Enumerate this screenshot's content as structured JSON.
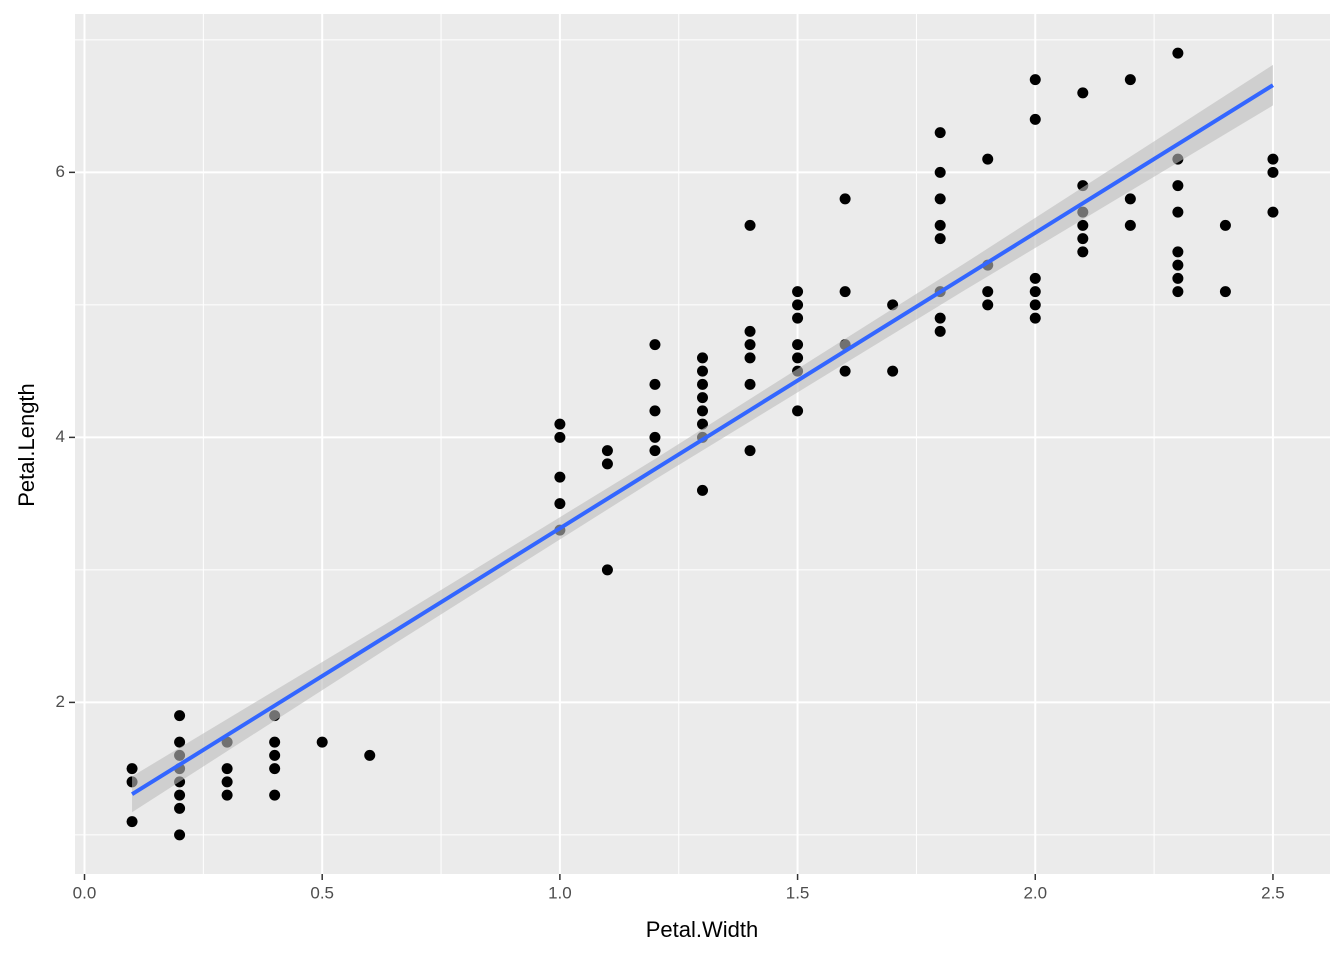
{
  "chart_data": {
    "type": "scatter",
    "x_label": "Petal.Width",
    "y_label": "Petal.Length",
    "xlim": [
      -0.02,
      2.62
    ],
    "ylim": [
      0.705,
      7.195
    ],
    "xticks": [
      {
        "value": 0,
        "label": "0.0"
      },
      0.5,
      {
        "value": 1,
        "label": "1.0"
      },
      1.5,
      {
        "value": 2,
        "label": "2.0"
      },
      2.5
    ],
    "yticks": [
      2,
      4,
      6
    ],
    "xminor": [
      0.25,
      0.75,
      1.25,
      1.75,
      2.25
    ],
    "yminor": [
      1,
      3,
      5,
      7
    ],
    "grid": true,
    "series": [
      {
        "color": "#000000",
        "x": [
          0.1,
          0.1,
          0.1,
          0.2,
          0.2,
          0.2,
          0.2,
          0.2,
          0.2,
          0.2,
          0.2,
          0.3,
          0.3,
          0.3,
          0.3,
          0.4,
          0.4,
          0.4,
          0.4,
          0.4,
          0.5,
          0.6,
          1.0,
          1.0,
          1.0,
          1.0,
          1.0,
          1.1,
          1.1,
          1.1,
          1.2,
          1.2,
          1.2,
          1.2,
          1.2,
          1.3,
          1.3,
          1.3,
          1.3,
          1.3,
          1.3,
          1.3,
          1.3,
          1.4,
          1.4,
          1.4,
          1.4,
          1.4,
          1.4,
          1.5,
          1.5,
          1.5,
          1.5,
          1.5,
          1.5,
          1.5,
          1.6,
          1.6,
          1.6,
          1.6,
          1.7,
          1.7,
          1.8,
          1.8,
          1.8,
          1.8,
          1.8,
          1.8,
          1.8,
          1.8,
          1.9,
          1.9,
          1.9,
          1.9,
          2.0,
          2.0,
          2.0,
          2.0,
          2.0,
          2.0,
          2.1,
          2.1,
          2.1,
          2.1,
          2.1,
          2.1,
          2.2,
          2.2,
          2.2,
          2.3,
          2.3,
          2.3,
          2.3,
          2.3,
          2.3,
          2.3,
          2.3,
          2.4,
          2.4,
          2.5,
          2.5,
          2.5
        ],
        "values": [
          1.1,
          1.4,
          1.5,
          1.0,
          1.2,
          1.3,
          1.4,
          1.5,
          1.6,
          1.7,
          1.9,
          1.3,
          1.4,
          1.5,
          1.7,
          1.3,
          1.5,
          1.6,
          1.7,
          1.9,
          1.7,
          1.6,
          3.3,
          3.5,
          3.7,
          4.0,
          4.1,
          3.0,
          3.8,
          3.9,
          3.9,
          4.0,
          4.2,
          4.4,
          4.7,
          3.6,
          4.0,
          4.1,
          4.2,
          4.3,
          4.4,
          4.5,
          4.6,
          3.9,
          4.4,
          4.6,
          4.7,
          4.8,
          5.6,
          4.2,
          4.5,
          4.6,
          4.7,
          4.9,
          5.0,
          5.1,
          4.5,
          4.7,
          5.1,
          5.8,
          4.5,
          5.0,
          4.8,
          4.9,
          5.1,
          5.5,
          5.6,
          5.8,
          6.0,
          6.3,
          5.0,
          5.1,
          5.3,
          6.1,
          4.9,
          5.0,
          5.1,
          5.2,
          6.4,
          6.7,
          5.4,
          5.5,
          5.6,
          5.7,
          5.9,
          6.6,
          5.6,
          5.8,
          6.7,
          5.1,
          5.2,
          5.3,
          5.4,
          5.7,
          5.9,
          6.1,
          6.9,
          5.1,
          5.6,
          5.7,
          6.0,
          6.1
        ]
      }
    ],
    "fit": {
      "color": "#3366FF",
      "band_color": "#bdbdbd",
      "x": [
        0.1,
        0.65,
        1.2,
        1.85,
        2.5
      ],
      "values": [
        1.307,
        2.533,
        3.76,
        5.209,
        6.658
      ],
      "lower": [
        1.171,
        2.438,
        3.682,
        5.107,
        6.505
      ],
      "upper": [
        1.442,
        2.628,
        3.837,
        5.31,
        6.811
      ]
    }
  }
}
